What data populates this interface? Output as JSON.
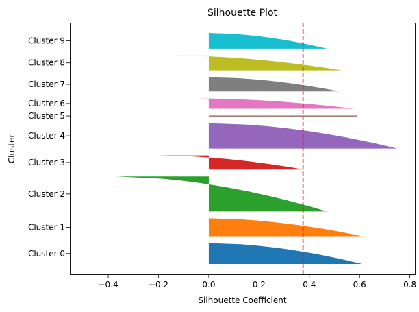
{
  "chart_data": {
    "type": "bar",
    "title": "Silhouette Plot",
    "xlabel": "Silhouette Coefficient",
    "ylabel": "Cluster",
    "xlim": [
      -0.55,
      0.82
    ],
    "xticks": [
      -0.4,
      -0.2,
      0.0,
      0.2,
      0.4,
      0.6,
      0.8
    ],
    "xtick_labels": [
      "−0.4",
      "−0.2",
      "0.0",
      "0.2",
      "0.4",
      "0.6",
      "0.8"
    ],
    "grid": false,
    "average_silhouette": 0.375,
    "average_line_color": "#ff0000",
    "clusters": [
      {
        "label": "Cluster 0",
        "color": "#1f77b4",
        "size": 28,
        "max": 0.61,
        "min": 0.0
      },
      {
        "label": "Cluster 1",
        "color": "#ff7f0e",
        "size": 24,
        "max": 0.61,
        "min": 0.0
      },
      {
        "label": "Cluster 2",
        "color": "#2ca02c",
        "size": 47,
        "max": 0.47,
        "min": -0.37
      },
      {
        "label": "Cluster 3",
        "color": "#d62728",
        "size": 19,
        "max": 0.38,
        "min": -0.2
      },
      {
        "label": "Cluster 4",
        "color": "#9467bd",
        "size": 34,
        "max": 0.75,
        "min": 0.0
      },
      {
        "label": "Cluster 5",
        "color": "#8c564b",
        "size": 1,
        "max": 0.59,
        "min": 0.59
      },
      {
        "label": "Cluster 6",
        "color": "#e377c2",
        "size": 14,
        "max": 0.58,
        "min": -0.05
      },
      {
        "label": "Cluster 7",
        "color": "#7f7f7f",
        "size": 19,
        "max": 0.52,
        "min": 0.0
      },
      {
        "label": "Cluster 8",
        "color": "#bcbd22",
        "size": 20,
        "max": 0.53,
        "min": -0.14
      },
      {
        "label": "Cluster 9",
        "color": "#17becf",
        "size": 21,
        "max": 0.47,
        "min": 0.0
      }
    ]
  }
}
